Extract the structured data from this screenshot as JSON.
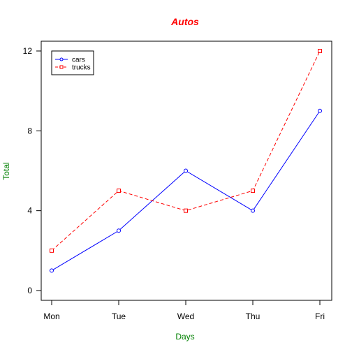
{
  "chart_data": {
    "type": "line",
    "title": "Autos",
    "xlabel": "Days",
    "ylabel": "Total",
    "categories": [
      "Mon",
      "Tue",
      "Wed",
      "Thu",
      "Fri"
    ],
    "yticks": [
      "0",
      "4",
      "8",
      "12"
    ],
    "ylim": [
      0,
      12
    ],
    "grid": false,
    "legend_position": "top-left",
    "series": [
      {
        "name": "cars",
        "values": [
          1,
          3,
          6,
          4,
          9
        ],
        "color": "#0000ff",
        "line": "solid",
        "marker": "circle"
      },
      {
        "name": "trucks",
        "values": [
          2,
          5,
          4,
          5,
          12
        ],
        "color": "#ff0000",
        "line": "dashed",
        "marker": "square"
      }
    ],
    "colors": {
      "title": "#ff0000",
      "axis_labels": "#008000"
    }
  }
}
